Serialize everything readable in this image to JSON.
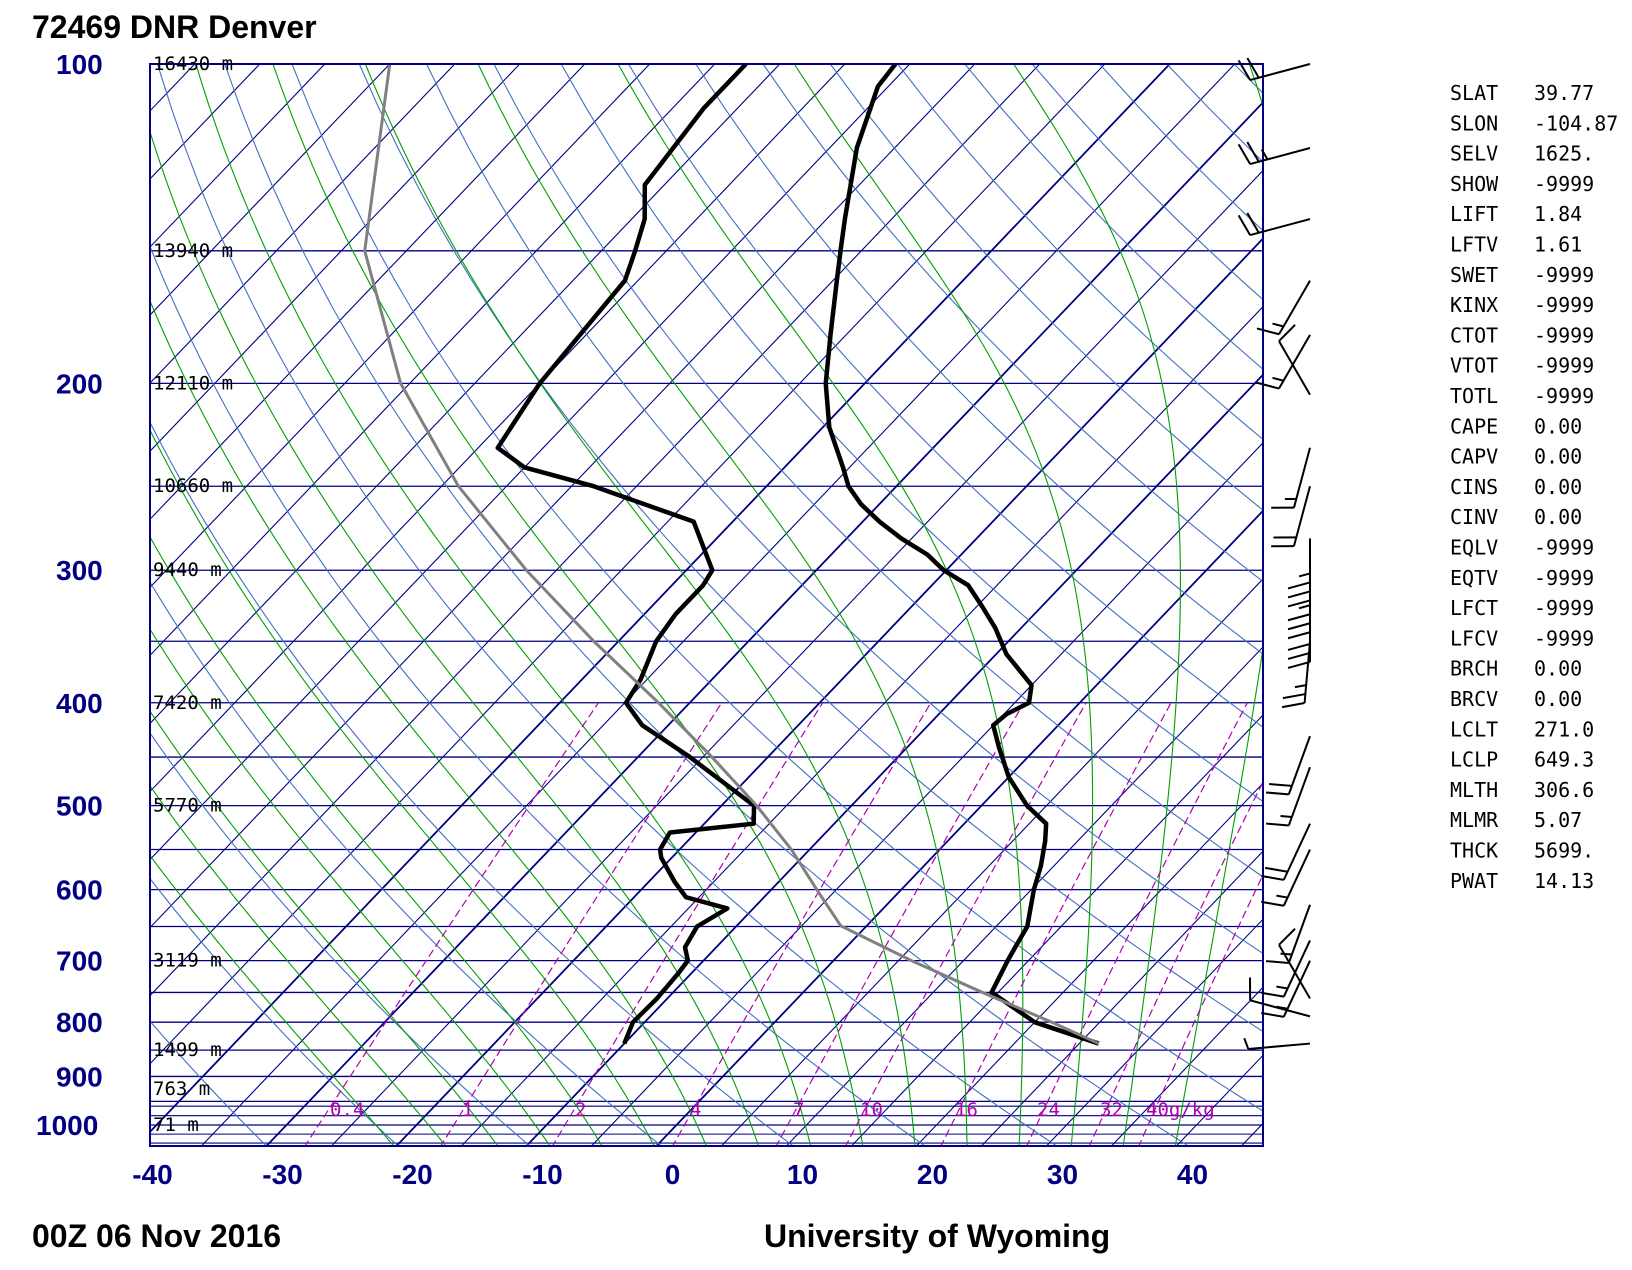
{
  "header": {
    "station": "72469 DNR Denver",
    "time": "00Z 06 Nov 2016",
    "credit": "University of Wyoming"
  },
  "colors": {
    "isobar": "#000080",
    "isotherm": "#000080",
    "dry_adiabat": "#4070c0",
    "moist_adiabat": "#00a000",
    "mixing_ratio": "#b000b0",
    "saturated_adiabat_curve": "#4070c0",
    "sounding": "#000000",
    "parcel": "#808080"
  },
  "chart_data": {
    "type": "line",
    "diagram": "skew-t log-p",
    "x_axis": {
      "ticks": [
        -40,
        -30,
        -20,
        -10,
        0,
        10,
        20,
        30,
        40
      ],
      "range": [
        -40,
        45
      ]
    },
    "y_axis": {
      "ticks": [
        100,
        200,
        300,
        400,
        500,
        600,
        700,
        800,
        900,
        1000
      ],
      "range": [
        100,
        1050
      ],
      "scale": "log"
    },
    "height_labels": [
      {
        "p": 100,
        "text": "16430 m"
      },
      {
        "p": 150,
        "text": "13940 m"
      },
      {
        "p": 200,
        "text": "12110 m"
      },
      {
        "p": 250,
        "text": "10660 m"
      },
      {
        "p": 300,
        "text": "9440 m"
      },
      {
        "p": 400,
        "text": "7420 m"
      },
      {
        "p": 500,
        "text": "5770 m"
      },
      {
        "p": 700,
        "text": "3119 m"
      },
      {
        "p": 850,
        "text": "1499 m"
      },
      {
        "p": 925,
        "text": "763 m"
      },
      {
        "p": 1000,
        "text": "71 m"
      }
    ],
    "mixing_ratio_labels": [
      "0.4",
      "1",
      "2",
      "4",
      "7",
      "10",
      "16",
      "24",
      "32",
      "40g/kg"
    ],
    "series": [
      {
        "role": "temperature",
        "points": [
          [
            838,
            26.5
          ],
          [
            800,
            20.0
          ],
          [
            750,
            14.5
          ],
          [
            700,
            13.4
          ],
          [
            680,
            13.0
          ],
          [
            650,
            12.4
          ],
          [
            600,
            10.2
          ],
          [
            570,
            9.0
          ],
          [
            540,
            7.5
          ],
          [
            520,
            6.3
          ],
          [
            500,
            3.5
          ],
          [
            470,
            0.0
          ],
          [
            440,
            -3.0
          ],
          [
            420,
            -5.0
          ],
          [
            410,
            -4.8
          ],
          [
            400,
            -3.9
          ],
          [
            385,
            -5.0
          ],
          [
            360,
            -9.2
          ],
          [
            340,
            -12.0
          ],
          [
            325,
            -14.5
          ],
          [
            310,
            -17.2
          ],
          [
            300,
            -20.2
          ],
          [
            290,
            -22.6
          ],
          [
            280,
            -25.8
          ],
          [
            270,
            -28.7
          ],
          [
            260,
            -31.4
          ],
          [
            250,
            -33.7
          ],
          [
            240,
            -35.5
          ],
          [
            220,
            -39.5
          ],
          [
            200,
            -43.0
          ],
          [
            180,
            -46.2
          ],
          [
            160,
            -49.7
          ],
          [
            150,
            -51.6
          ],
          [
            140,
            -53.6
          ],
          [
            120,
            -57.9
          ],
          [
            105,
            -60.8
          ],
          [
            100,
            -61.1
          ]
        ]
      },
      {
        "role": "dewpoint",
        "points": [
          [
            838,
            -10.0
          ],
          [
            800,
            -10.9
          ],
          [
            760,
            -10.8
          ],
          [
            720,
            -11.0
          ],
          [
            700,
            -11.2
          ],
          [
            680,
            -12.4
          ],
          [
            650,
            -13.0
          ],
          [
            625,
            -12.0
          ],
          [
            610,
            -16.0
          ],
          [
            590,
            -18.0
          ],
          [
            560,
            -20.8
          ],
          [
            550,
            -21.5
          ],
          [
            530,
            -22.0
          ],
          [
            520,
            -16.2
          ],
          [
            500,
            -17.5
          ],
          [
            450,
            -26.0
          ],
          [
            420,
            -32.0
          ],
          [
            400,
            -34.9
          ],
          [
            380,
            -35.5
          ],
          [
            350,
            -37.1
          ],
          [
            330,
            -37.6
          ],
          [
            310,
            -37.6
          ],
          [
            300,
            -38.0
          ],
          [
            270,
            -43.0
          ],
          [
            250,
            -53.3
          ],
          [
            240,
            -60.0
          ],
          [
            230,
            -63.5
          ],
          [
            200,
            -65.0
          ],
          [
            160,
            -66.0
          ],
          [
            150,
            -67.4
          ],
          [
            140,
            -69.0
          ],
          [
            130,
            -71.5
          ],
          [
            110,
            -72.6
          ],
          [
            100,
            -72.6
          ]
        ]
      },
      {
        "role": "parcel",
        "points": [
          [
            838,
            26.5
          ],
          [
            800,
            21.3
          ],
          [
            750,
            13.8
          ],
          [
            700,
            6.0
          ],
          [
            649,
            -2.0
          ],
          [
            600,
            -6.5
          ],
          [
            550,
            -11.4
          ],
          [
            500,
            -17.3
          ],
          [
            450,
            -24.3
          ],
          [
            400,
            -32.4
          ],
          [
            350,
            -41.9
          ],
          [
            300,
            -52.3
          ],
          [
            250,
            -63.7
          ],
          [
            200,
            -75.7
          ],
          [
            150,
            -88.2
          ],
          [
            100,
            -100.0
          ]
        ]
      }
    ],
    "wind_barbs": [
      {
        "p": 100,
        "dir": 255,
        "spd": 20
      },
      {
        "p": 120,
        "dir": 255,
        "spd": 25
      },
      {
        "p": 140,
        "dir": 255,
        "spd": 20
      },
      {
        "p": 160,
        "dir": 210,
        "spd": 15
      },
      {
        "p": 180,
        "dir": 210,
        "spd": 15
      },
      {
        "p": 205,
        "dir": 330,
        "spd": 10
      },
      {
        "p": 230,
        "dir": 195,
        "spd": 15
      },
      {
        "p": 250,
        "dir": 195,
        "spd": 20
      },
      {
        "p": 280,
        "dir": 180,
        "spd": 35
      },
      {
        "p": 300,
        "dir": 180,
        "spd": 35
      },
      {
        "p": 320,
        "dir": 180,
        "spd": 30
      },
      {
        "p": 350,
        "dir": 185,
        "spd": 25
      },
      {
        "p": 430,
        "dir": 200,
        "spd": 20
      },
      {
        "p": 460,
        "dir": 200,
        "spd": 15
      },
      {
        "p": 520,
        "dir": 205,
        "spd": 20
      },
      {
        "p": 550,
        "dir": 205,
        "spd": 15
      },
      {
        "p": 620,
        "dir": 200,
        "spd": 15
      },
      {
        "p": 670,
        "dir": 205,
        "spd": 15
      },
      {
        "p": 700,
        "dir": 205,
        "spd": 15
      },
      {
        "p": 760,
        "dir": 330,
        "spd": 10
      },
      {
        "p": 790,
        "dir": 285,
        "spd": 10
      },
      {
        "p": 838,
        "dir": 265,
        "spd": 5
      }
    ],
    "indices": [
      {
        "name": "SLAT",
        "value": "39.77"
      },
      {
        "name": "SLON",
        "value": "-104.87"
      },
      {
        "name": "SELV",
        "value": "1625."
      },
      {
        "name": "SHOW",
        "value": "-9999"
      },
      {
        "name": "LIFT",
        "value": "1.84"
      },
      {
        "name": "LFTV",
        "value": "1.61"
      },
      {
        "name": "SWET",
        "value": "-9999"
      },
      {
        "name": "KINX",
        "value": "-9999"
      },
      {
        "name": "CTOT",
        "value": "-9999"
      },
      {
        "name": "VTOT",
        "value": "-9999"
      },
      {
        "name": "TOTL",
        "value": "-9999"
      },
      {
        "name": "CAPE",
        "value": "0.00"
      },
      {
        "name": "CAPV",
        "value": "0.00"
      },
      {
        "name": "CINS",
        "value": "0.00"
      },
      {
        "name": "CINV",
        "value": "0.00"
      },
      {
        "name": "EQLV",
        "value": "-9999"
      },
      {
        "name": "EQTV",
        "value": "-9999"
      },
      {
        "name": "LFCT",
        "value": "-9999"
      },
      {
        "name": "LFCV",
        "value": "-9999"
      },
      {
        "name": "BRCH",
        "value": "0.00"
      },
      {
        "name": "BRCV",
        "value": "0.00"
      },
      {
        "name": "LCLT",
        "value": "271.0"
      },
      {
        "name": "LCLP",
        "value": "649.3"
      },
      {
        "name": "MLTH",
        "value": "306.6"
      },
      {
        "name": "MLMR",
        "value": "5.07"
      },
      {
        "name": "THCK",
        "value": "5699."
      },
      {
        "name": "PWAT",
        "value": "14.13"
      }
    ]
  }
}
